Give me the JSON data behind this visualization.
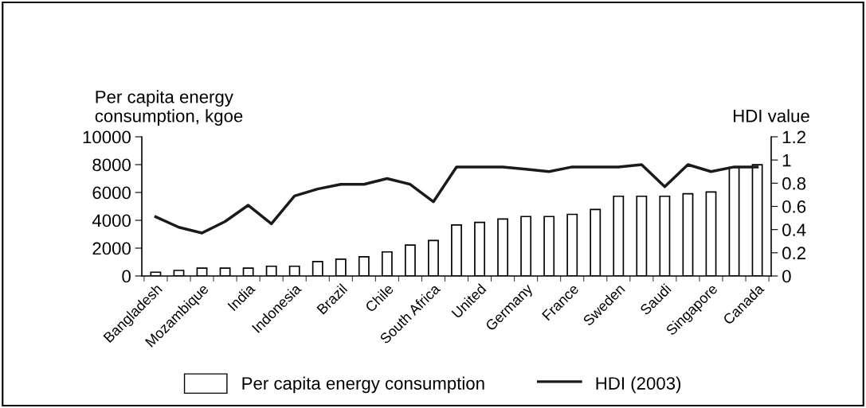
{
  "chart_data": {
    "type": "bar",
    "ylabel": "Per capita energy\nconsumption, kgoe",
    "y2label": "HDI value",
    "categories": [
      "Bangladesh",
      null,
      "Mozambique",
      null,
      "India",
      null,
      "Indonesia",
      null,
      "Brazil",
      null,
      "Chile",
      null,
      "South Africa",
      null,
      "United",
      null,
      "Germany",
      null,
      "France",
      null,
      "Sweden",
      null,
      "Saudi",
      null,
      "Singapore",
      null,
      "Canada"
    ],
    "series": [
      {
        "name": "Per capita energy consumption",
        "color": "#ffffff",
        "values": [
          270,
          400,
          560,
          560,
          560,
          700,
          700,
          1040,
          1210,
          1380,
          1730,
          2220,
          2550,
          3660,
          3850,
          4090,
          4270,
          4270,
          4430,
          4780,
          5730,
          5730,
          5730,
          5910,
          6040,
          7800,
          7990
        ]
      },
      {
        "name": "HDI (2003)",
        "type": "line",
        "axis": "y2",
        "color": "#1a1a1a",
        "values": [
          0.51,
          0.42,
          0.37,
          0.47,
          0.61,
          0.45,
          0.69,
          0.75,
          0.79,
          0.79,
          0.84,
          0.79,
          0.64,
          0.94,
          0.94,
          0.94,
          0.92,
          0.9,
          0.94,
          0.94,
          0.94,
          0.96,
          0.77,
          0.96,
          0.9,
          0.94,
          0.94
        ]
      }
    ],
    "ylim": [
      0,
      10000
    ],
    "yticks": [
      0,
      2000,
      4000,
      6000,
      8000,
      10000
    ],
    "y2lim": [
      0,
      1.2
    ],
    "y2ticks": [
      0,
      0.2,
      0.4,
      0.6,
      0.8,
      1,
      1.2
    ],
    "grid": false,
    "legend": "bottom",
    "line_style": "solid",
    "marker": "none"
  }
}
